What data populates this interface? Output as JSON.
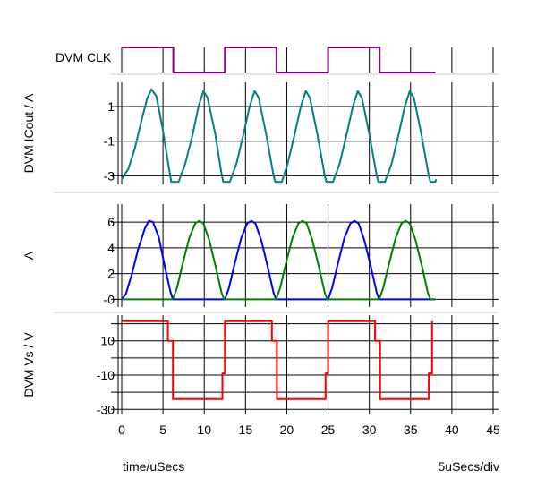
{
  "chart_data": {
    "type": "line",
    "x_axis": {
      "label": "time/uSecs",
      "scale_note": "5uSecs/div",
      "range": [
        0,
        45
      ],
      "ticks": [
        0,
        5,
        10,
        15,
        20,
        25,
        30,
        35,
        40,
        45
      ]
    },
    "colors": {
      "clk": "#800080",
      "icout": "#008080",
      "phase_a": "#0000ff",
      "phase_b": "#008000",
      "vs": "#ff0000",
      "grid": "#000000",
      "separator": "#c8c8c8"
    },
    "panels": [
      {
        "id": "clk",
        "label": "DVM CLK",
        "type": "digital",
        "series": [
          {
            "color": "#800080",
            "points": [
              [
                0,
                1
              ],
              [
                6.25,
                1
              ],
              [
                6.25,
                0
              ],
              [
                12.5,
                0
              ],
              [
                12.5,
                1
              ],
              [
                18.75,
                1
              ],
              [
                18.75,
                0
              ],
              [
                25,
                0
              ],
              [
                25,
                1
              ],
              [
                31.25,
                1
              ],
              [
                31.25,
                0
              ],
              [
                38,
                0
              ]
            ]
          }
        ]
      },
      {
        "id": "icout",
        "label": "DVM ICout / A",
        "ylim": [
          -3.5,
          2.4
        ],
        "yticks": [
          1,
          -1,
          -3
        ],
        "ytick_labels": [
          "1",
          "-1",
          "-3"
        ],
        "series": [
          {
            "color": "#008080",
            "points": [
              [
                0,
                -3.2
              ],
              [
                0.8,
                -2.6
              ],
              [
                1.6,
                -1.4
              ],
              [
                2.4,
                0.2
              ],
              [
                3.1,
                1.5
              ],
              [
                3.6,
                2.0
              ],
              [
                4.2,
                1.6
              ],
              [
                5.0,
                -0.4
              ],
              [
                5.8,
                -2.8
              ],
              [
                6.0,
                -3.35
              ],
              [
                6.9,
                -3.35
              ],
              [
                7.7,
                -2.3
              ],
              [
                8.6,
                -0.6
              ],
              [
                9.3,
                1.0
              ],
              [
                9.9,
                1.9
              ],
              [
                10.4,
                1.5
              ],
              [
                11.3,
                -0.5
              ],
              [
                12.1,
                -2.9
              ],
              [
                12.3,
                -3.35
              ],
              [
                13.1,
                -3.35
              ],
              [
                13.9,
                -2.3
              ],
              [
                14.8,
                -0.5
              ],
              [
                15.5,
                1.0
              ],
              [
                16.1,
                1.9
              ],
              [
                16.6,
                1.5
              ],
              [
                17.5,
                -0.6
              ],
              [
                18.4,
                -3.0
              ],
              [
                18.6,
                -3.35
              ],
              [
                19.4,
                -3.35
              ],
              [
                20.1,
                -2.3
              ],
              [
                21.0,
                -0.5
              ],
              [
                21.7,
                1.0
              ],
              [
                22.3,
                1.9
              ],
              [
                22.8,
                1.5
              ],
              [
                23.7,
                -0.6
              ],
              [
                24.6,
                -3.0
              ],
              [
                24.8,
                -3.35
              ],
              [
                25.6,
                -3.35
              ],
              [
                26.4,
                -2.3
              ],
              [
                27.3,
                -0.5
              ],
              [
                28.0,
                1.0
              ],
              [
                28.6,
                1.9
              ],
              [
                29.1,
                1.5
              ],
              [
                30.0,
                -0.6
              ],
              [
                30.9,
                -3.0
              ],
              [
                31.1,
                -3.35
              ],
              [
                31.9,
                -3.35
              ],
              [
                32.7,
                -2.3
              ],
              [
                33.6,
                -0.5
              ],
              [
                34.3,
                1.0
              ],
              [
                34.9,
                1.9
              ],
              [
                35.4,
                1.5
              ],
              [
                36.3,
                -0.6
              ],
              [
                37.2,
                -3.0
              ],
              [
                37.4,
                -3.35
              ],
              [
                38,
                -3.35
              ],
              [
                38.1,
                -3.2
              ]
            ]
          }
        ]
      },
      {
        "id": "phase",
        "label": "A",
        "ylim": [
          -0.6,
          7.4
        ],
        "yticks": [
          6,
          4,
          2,
          0
        ],
        "ytick_labels": [
          "6",
          "4",
          "2",
          "-0"
        ],
        "series": [
          {
            "color": "#0000ff",
            "points": [
              [
                0,
                0
              ],
              [
                0.5,
                0.4
              ],
              [
                1.2,
                1.9
              ],
              [
                2.0,
                3.9
              ],
              [
                2.8,
                5.5
              ],
              [
                3.3,
                6.1
              ],
              [
                3.8,
                6.0
              ],
              [
                4.5,
                4.8
              ],
              [
                5.2,
                2.6
              ],
              [
                5.9,
                0.6
              ],
              [
                6.2,
                0
              ],
              [
                12.5,
                0
              ],
              [
                13.0,
                0.9
              ],
              [
                13.7,
                2.8
              ],
              [
                14.5,
                4.8
              ],
              [
                15.2,
                5.9
              ],
              [
                15.7,
                6.1
              ],
              [
                16.2,
                5.9
              ],
              [
                16.9,
                4.6
              ],
              [
                17.7,
                2.5
              ],
              [
                18.4,
                0.5
              ],
              [
                18.7,
                0
              ],
              [
                25.0,
                0
              ],
              [
                25.5,
                0.9
              ],
              [
                26.2,
                2.8
              ],
              [
                27.0,
                4.8
              ],
              [
                27.7,
                5.9
              ],
              [
                28.2,
                6.1
              ],
              [
                28.7,
                5.9
              ],
              [
                29.4,
                4.6
              ],
              [
                30.2,
                2.5
              ],
              [
                30.9,
                0.5
              ],
              [
                31.2,
                0
              ],
              [
                38,
                0
              ]
            ]
          },
          {
            "color": "#008000",
            "points": [
              [
                0,
                0
              ],
              [
                6.2,
                0
              ],
              [
                6.7,
                0.9
              ],
              [
                7.4,
                2.8
              ],
              [
                8.2,
                4.8
              ],
              [
                8.9,
                5.9
              ],
              [
                9.4,
                6.1
              ],
              [
                9.9,
                5.9
              ],
              [
                10.6,
                4.6
              ],
              [
                11.4,
                2.5
              ],
              [
                12.1,
                0.5
              ],
              [
                12.4,
                0
              ],
              [
                18.7,
                0
              ],
              [
                19.2,
                0.9
              ],
              [
                19.9,
                2.8
              ],
              [
                20.7,
                4.8
              ],
              [
                21.4,
                5.9
              ],
              [
                21.9,
                6.1
              ],
              [
                22.4,
                5.9
              ],
              [
                23.1,
                4.6
              ],
              [
                23.9,
                2.5
              ],
              [
                24.6,
                0.5
              ],
              [
                24.9,
                0
              ],
              [
                31.2,
                0
              ],
              [
                31.7,
                0.9
              ],
              [
                32.4,
                2.8
              ],
              [
                33.2,
                4.8
              ],
              [
                33.9,
                5.9
              ],
              [
                34.4,
                6.1
              ],
              [
                34.9,
                5.9
              ],
              [
                35.6,
                4.6
              ],
              [
                36.4,
                2.5
              ],
              [
                37.1,
                0.5
              ],
              [
                37.4,
                0
              ],
              [
                38,
                0
              ]
            ]
          }
        ]
      },
      {
        "id": "vs",
        "label": "DVM Vs / V",
        "ylim": [
          -33,
          25
        ],
        "yticks": [
          10,
          -10,
          -30
        ],
        "ytick_labels": [
          "10",
          "-10",
          "-30"
        ],
        "extra_gridlines": [
          20,
          0,
          -20
        ],
        "series": [
          {
            "color": "#ff0000",
            "points": [
              [
                0,
                21.5
              ],
              [
                5.6,
                21.5
              ],
              [
                5.6,
                10
              ],
              [
                6.2,
                10
              ],
              [
                6.2,
                -24
              ],
              [
                12.2,
                -24
              ],
              [
                12.2,
                -9
              ],
              [
                12.5,
                -9
              ],
              [
                12.5,
                21.5
              ],
              [
                18.2,
                21.5
              ],
              [
                18.2,
                10
              ],
              [
                18.8,
                10
              ],
              [
                18.8,
                -24
              ],
              [
                24.7,
                -24
              ],
              [
                24.7,
                -9
              ],
              [
                25.0,
                -9
              ],
              [
                25.0,
                21.5
              ],
              [
                30.7,
                21.5
              ],
              [
                30.7,
                10
              ],
              [
                31.3,
                10
              ],
              [
                31.3,
                -24
              ],
              [
                37.2,
                -24
              ],
              [
                37.2,
                -9
              ],
              [
                37.6,
                -9
              ],
              [
                37.6,
                21.5
              ]
            ]
          }
        ]
      }
    ]
  }
}
